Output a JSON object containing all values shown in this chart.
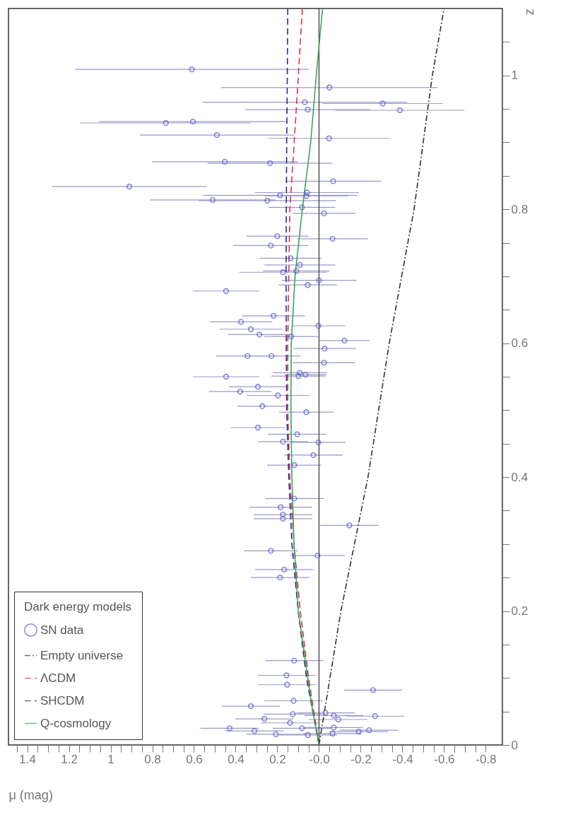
{
  "chart_data": {
    "type": "scatter",
    "xlabel": "μ (mag)",
    "ylabel": "z",
    "legend_title": "Dark energy models",
    "legend": "bottom left",
    "grid": false,
    "ylim": [
      0,
      1.1
    ],
    "xlim": [
      1.49,
      -0.88
    ],
    "yticks": [
      0,
      {
        "value": 0.05,
        "label": null
      },
      {
        "value": 0.1,
        "label": null
      },
      {
        "value": 0.15,
        "label": null
      },
      0.2,
      {
        "value": 0.25,
        "label": null
      },
      {
        "value": 0.3,
        "label": null
      },
      {
        "value": 0.35,
        "label": null
      },
      0.4,
      {
        "value": 0.45,
        "label": null
      },
      {
        "value": 0.5,
        "label": null
      },
      {
        "value": 0.55,
        "label": null
      },
      0.6,
      {
        "value": 0.65,
        "label": null
      },
      {
        "value": 0.7,
        "label": null
      },
      {
        "value": 0.75,
        "label": null
      },
      0.8,
      {
        "value": 0.85,
        "label": null
      },
      {
        "value": 0.9,
        "label": null
      },
      {
        "value": 0.95,
        "label": null
      },
      1,
      {
        "value": 1.05,
        "label": null
      }
    ],
    "xticks": [
      {
        "value": -0.8,
        "label": "-0.8"
      },
      {
        "value": -0.75,
        "label": null
      },
      {
        "value": -0.7,
        "label": null
      },
      {
        "value": -0.65,
        "label": null
      },
      {
        "value": -0.6,
        "label": "-0.6"
      },
      {
        "value": -0.55,
        "label": null
      },
      {
        "value": -0.5,
        "label": null
      },
      {
        "value": -0.45,
        "label": null
      },
      {
        "value": -0.4,
        "label": "-0.4"
      },
      {
        "value": -0.35,
        "label": null
      },
      {
        "value": -0.3,
        "label": null
      },
      {
        "value": -0.25,
        "label": null
      },
      {
        "value": -0.2,
        "label": "-0.2"
      },
      {
        "value": -0.15,
        "label": null
      },
      {
        "value": -0.1,
        "label": null
      },
      {
        "value": -0.05,
        "label": null
      },
      {
        "value": 0,
        "label": "-0.0"
      },
      {
        "value": 0.05,
        "label": null
      },
      {
        "value": 0.1,
        "label": null
      },
      {
        "value": 0.15,
        "label": null
      },
      0.2,
      {
        "value": 0.25,
        "label": null
      },
      {
        "value": 0.3,
        "label": null
      },
      {
        "value": 0.35,
        "label": null
      },
      0.4,
      {
        "value": 0.45,
        "label": null
      },
      {
        "value": 0.5,
        "label": null
      },
      {
        "value": 0.55,
        "label": null
      },
      0.6,
      {
        "value": 0.65,
        "label": null
      },
      {
        "value": 0.7,
        "label": null
      },
      {
        "value": 0.75,
        "label": null
      },
      0.8,
      {
        "value": 0.85,
        "label": null
      },
      {
        "value": 0.9,
        "label": null
      },
      {
        "value": 0.95,
        "label": null
      },
      1,
      {
        "value": 1.05,
        "label": null
      },
      {
        "value": 1.1,
        "label": null
      },
      {
        "value": 1.15,
        "label": null
      },
      1.2,
      {
        "value": 1.25,
        "label": null
      },
      {
        "value": 1.3,
        "label": null
      },
      {
        "value": 1.35,
        "label": null
      },
      1.4,
      {
        "value": 1.45,
        "label": null
      }
    ],
    "ref_lines": [
      {
        "axis": "x",
        "value": 0,
        "color": "#333333",
        "line_style": "solid"
      }
    ],
    "series": [
      {
        "name": "SN data",
        "marker": "circle",
        "color": "#5555cc",
        "values": [
          1.009,
          0.982,
          0.96,
          0.958,
          0.949,
          0.948,
          0.929,
          0.931,
          0.911,
          0.906,
          0.871,
          0.869,
          0.834,
          0.842,
          0.825,
          0.821,
          0.82,
          0.814,
          0.813,
          0.803,
          0.794,
          0.76,
          0.756,
          0.746,
          0.727,
          0.717,
          0.706,
          0.708,
          0.694,
          0.687,
          0.678,
          0.641,
          0.632,
          0.626,
          0.621,
          0.613,
          0.61,
          0.604,
          0.592,
          0.581,
          0.581,
          0.571,
          0.55,
          0.556,
          0.551,
          0.553,
          0.535,
          0.528,
          0.522,
          0.506,
          0.497,
          0.474,
          0.464,
          0.453,
          0.452,
          0.433,
          0.418,
          0.368,
          0.355,
          0.344,
          0.338,
          0.328,
          0.29,
          0.283,
          0.262,
          0.25,
          0.126,
          0.104,
          0.09,
          0.082,
          0.058,
          0.066,
          0.039,
          0.046,
          0.048,
          0.044,
          0.038,
          0.043,
          0.033,
          0.025,
          0.021,
          0.016,
          0.025,
          0.026,
          0.02,
          0.022,
          0.015,
          0.017
        ],
        "x": [
          0.61,
          -0.05,
          0.068,
          -0.306,
          0.054,
          -0.388,
          0.735,
          0.605,
          0.49,
          -0.048,
          0.452,
          0.235,
          0.91,
          -0.068,
          0.058,
          0.187,
          0.061,
          0.51,
          0.248,
          0.082,
          -0.024,
          0.2,
          -0.065,
          0.231,
          0.136,
          0.092,
          0.173,
          0.109,
          0.0,
          0.054,
          0.446,
          0.218,
          0.374,
          0.003,
          0.327,
          0.286,
          0.133,
          -0.122,
          -0.027,
          0.343,
          0.228,
          -0.024,
          0.446,
          0.092,
          0.099,
          0.065,
          0.293,
          0.378,
          0.197,
          0.272,
          0.061,
          0.293,
          0.105,
          0.173,
          0.003,
          0.027,
          0.119,
          0.119,
          0.184,
          0.173,
          0.173,
          -0.146,
          0.231,
          0.007,
          0.167,
          0.187,
          0.119,
          0.156,
          0.153,
          -0.259,
          0.327,
          0.122,
          0.262,
          0.126,
          -0.031,
          -0.071,
          -0.092,
          -0.269,
          0.139,
          0.429,
          0.31,
          0.207,
          0.082,
          -0.071,
          -0.19,
          -0.24,
          0.054,
          -0.065
        ],
        "xerrors": [
          0.56,
          0.52,
          0.49,
          0.29,
          0.3,
          0.31,
          0.41,
          0.45,
          0.37,
          0.29,
          0.35,
          0.3,
          0.37,
          0.23,
          0.25,
          0.37,
          0.2,
          0.3,
          0.33,
          0.16,
          0.15,
          0.15,
          0.17,
          0.18,
          0.15,
          0.17,
          0.21,
          0.16,
          0.18,
          0.14,
          0.16,
          0.15,
          0.15,
          0.13,
          0.15,
          0.15,
          0.13,
          0.12,
          0.15,
          0.15,
          0.14,
          0.15,
          0.16,
          0.13,
          0.13,
          0.1,
          0.14,
          0.15,
          0.15,
          0.12,
          0.13,
          0.13,
          0.14,
          0.12,
          0.13,
          0.14,
          0.13,
          0.14,
          0.15,
          0.14,
          0.14,
          0.14,
          0.13,
          0.13,
          0.14,
          0.14,
          0.14,
          0.14,
          0.14,
          0.14,
          0.14,
          0.14,
          0.14,
          0.14,
          0.14,
          0.14,
          0.14,
          0.14,
          0.14,
          0.14,
          0.14,
          0.14,
          0.14,
          0.14,
          0.14,
          0.14,
          0.14,
          0.14
        ]
      },
      {
        "name": "Empty universe",
        "type": "line",
        "line_style": "dashdot",
        "color": "#333333",
        "values": [
          0,
          0.2,
          0.4,
          0.6,
          0.8,
          1.0,
          1.1
        ],
        "x": [
          0,
          -0.105,
          -0.235,
          -0.337,
          -0.456,
          -0.544,
          -0.6
        ]
      },
      {
        "name": "ΛCDM",
        "type": "line",
        "line_style": "dashed",
        "color": "#e0304a",
        "values": [
          0,
          0.05,
          0.1,
          0.2,
          0.3,
          0.4,
          0.5,
          0.6,
          0.7,
          0.8,
          0.9,
          1.0,
          1.1
        ],
        "x": [
          0,
          0.025,
          0.05,
          0.09,
          0.12,
          0.14,
          0.15,
          0.15,
          0.145,
          0.14,
          0.119,
          0.099,
          0.08
        ]
      },
      {
        "name": "SHCDM",
        "type": "line",
        "line_style": "dashed",
        "color": "#2a2a9a",
        "values": [
          0,
          0.05,
          0.1,
          0.2,
          0.3,
          0.4,
          0.5,
          0.6,
          0.7,
          0.8,
          0.9,
          1.0,
          1.1
        ],
        "x": [
          0,
          0.03,
          0.06,
          0.1,
          0.13,
          0.145,
          0.155,
          0.157,
          0.158,
          0.157,
          0.155,
          0.152,
          0.15
        ]
      },
      {
        "name": "Q-cosmology",
        "type": "line",
        "line_style": "solid",
        "color": "#3aa655",
        "values": [
          0,
          0.05,
          0.1,
          0.2,
          0.3,
          0.4,
          0.5,
          0.6,
          0.7,
          0.8,
          0.9,
          1.0,
          1.1
        ],
        "x": [
          0,
          0.03,
          0.054,
          0.099,
          0.12,
          0.13,
          0.135,
          0.133,
          0.115,
          0.08,
          0.04,
          0.013,
          -0.017
        ]
      }
    ]
  }
}
